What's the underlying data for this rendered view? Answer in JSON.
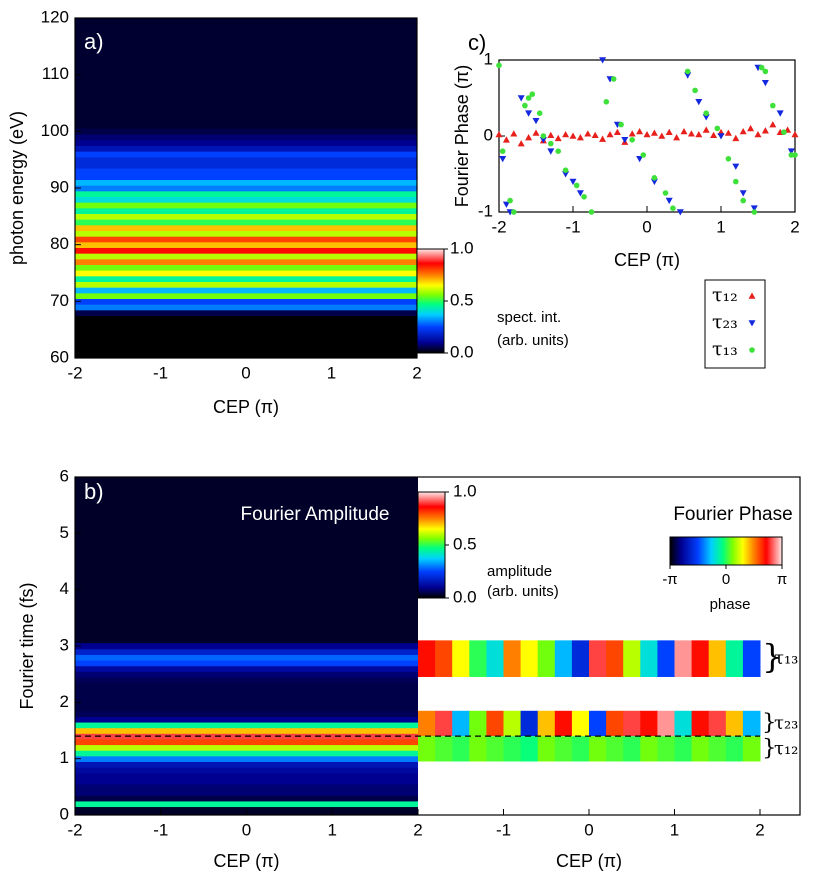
{
  "chart_data": [
    {
      "type": "heatmap",
      "label": "a)",
      "xlabel": "CEP (π)",
      "ylabel": "photon energy (eV)",
      "xlim": [
        -2,
        2
      ],
      "ylim": [
        60,
        120
      ],
      "xticks": [
        -2,
        -1,
        0,
        1,
        2
      ],
      "yticks": [
        60,
        70,
        80,
        90,
        100,
        110,
        120
      ],
      "y": [
        68,
        69,
        70,
        71,
        72,
        73,
        74,
        75,
        76,
        77,
        78,
        79,
        80,
        81,
        82,
        83,
        84,
        85,
        86,
        87,
        88,
        89,
        90,
        91,
        92,
        93,
        94,
        95,
        96,
        97,
        98,
        99,
        100
      ],
      "values": [
        0.05,
        0.3,
        0.25,
        0.55,
        0.35,
        0.6,
        0.45,
        0.65,
        0.55,
        0.75,
        0.6,
        0.85,
        0.7,
        0.8,
        0.6,
        0.7,
        0.5,
        0.6,
        0.45,
        0.55,
        0.4,
        0.45,
        0.3,
        0.35,
        0.25,
        0.25,
        0.2,
        0.2,
        0.25,
        0.15,
        0.1,
        0.08,
        0.05
      ],
      "colorbar": {
        "ticks": [
          {
            "value": 0,
            "label": "0.0"
          },
          {
            "value": 0.5,
            "label": "0.5"
          },
          {
            "value": 1,
            "label": "1.0"
          }
        ],
        "label": [
          "spect. int.",
          "(arb. units)"
        ]
      }
    },
    {
      "type": "scatter",
      "label": "c)",
      "xlabel": "CEP (π)",
      "ylabel": "Fourier Phase (π)",
      "xlim": [
        -2,
        2
      ],
      "ylim": [
        -1,
        1
      ],
      "xticks": [
        -2,
        -1,
        0,
        1,
        2
      ],
      "yticks": [
        -1,
        0,
        1
      ],
      "series": [
        {
          "name": "τ₁₂",
          "color": "#e8201c",
          "marker": "triangle-up",
          "x": [
            -2,
            -1.9,
            -1.8,
            -1.7,
            -1.6,
            -1.5,
            -1.4,
            -1.3,
            -1.2,
            -1.1,
            -1,
            -0.9,
            -0.8,
            -0.7,
            -0.6,
            -0.5,
            -0.4,
            -0.3,
            -0.2,
            -0.1,
            0,
            0.1,
            0.2,
            0.3,
            0.4,
            0.5,
            0.6,
            0.7,
            0.8,
            0.9,
            1,
            1.1,
            1.2,
            1.3,
            1.4,
            1.5,
            1.6,
            1.7,
            1.8,
            1.9,
            2
          ],
          "y": [
            0.02,
            -0.05,
            0.03,
            -0.1,
            -0.02,
            0.04,
            -0.06,
            0.01,
            -0.03,
            0.02,
            0,
            -0.02,
            0.03,
            0.01,
            -0.04,
            0.02,
            0.05,
            -0.08,
            0.03,
            0.06,
            0.02,
            0.04,
            0,
            0.05,
            -0.02,
            0.06,
            0.03,
            0.02,
            0.08,
            0.01,
            0.05,
            0.04,
            -0.03,
            0.06,
            0.1,
            0.02,
            0.07,
            0.15,
            0.05,
            0.08,
            0.02
          ]
        },
        {
          "name": "τ₂₃",
          "color": "#1428e0",
          "marker": "triangle-down",
          "x": [
            -1.95,
            -1.9,
            -1.85,
            -1.7,
            -1.6,
            -1.5,
            -1.4,
            -1.3,
            -1.1,
            -1,
            -0.9,
            -0.6,
            -0.5,
            -0.4,
            -0.3,
            -0.1,
            0.1,
            0.3,
            0.45,
            0.55,
            0.7,
            0.8,
            1,
            1.2,
            1.3,
            1.45,
            1.5,
            1.6,
            1.8,
            1.95
          ],
          "y": [
            -0.3,
            -0.9,
            -1,
            0.5,
            0.3,
            0.2,
            -0.05,
            -0.2,
            -0.5,
            -0.6,
            -0.75,
            1,
            0.75,
            0.15,
            -0.05,
            -0.3,
            -0.6,
            -0.85,
            -1,
            0.8,
            0.45,
            0.25,
            0,
            -0.4,
            -0.75,
            -0.95,
            0.9,
            0.7,
            0.3,
            -0.2
          ]
        },
        {
          "name": "τ₁₃",
          "color": "#3ee03a",
          "marker": "circle",
          "x": [
            -2,
            -1.95,
            -1.85,
            -1.8,
            -1.65,
            -1.6,
            -1.55,
            -1.45,
            -1.4,
            -1.3,
            -1.2,
            -1.1,
            -0.95,
            -0.85,
            -0.75,
            -0.55,
            -0.45,
            -0.35,
            -0.2,
            -0.05,
            0.1,
            0.25,
            0.35,
            0.55,
            0.65,
            0.8,
            0.95,
            1.1,
            1.2,
            1.3,
            1.45,
            1.55,
            1.6,
            1.7,
            1.85,
            1.95,
            2
          ],
          "y": [
            0.93,
            -0.2,
            -0.85,
            -1,
            0.4,
            0.5,
            0.55,
            0.3,
            0,
            -0.1,
            -0.2,
            -0.45,
            -0.65,
            -0.8,
            -1,
            0.45,
            0.75,
            0.15,
            -0.05,
            -0.25,
            -0.55,
            -0.75,
            -0.95,
            0.85,
            0.6,
            0.3,
            0.1,
            -0.3,
            -0.6,
            -0.85,
            -1,
            0.9,
            0.85,
            0.4,
            0.05,
            -0.25,
            -0.25
          ]
        }
      ]
    },
    {
      "type": "heatmap-phase",
      "label": "b)",
      "title": "Fourier Amplitude",
      "ylabel": "Fourier time (fs)",
      "xlabel": "CEP (π)",
      "xlim": [
        -2,
        2
      ],
      "ylim": [
        0,
        6
      ],
      "xticks": [
        -2,
        -1,
        0,
        1,
        2
      ],
      "yticks": [
        0,
        1,
        2,
        3,
        4,
        5,
        6
      ],
      "y": [
        0.2,
        0.3,
        0.4,
        0.5,
        0.6,
        0.7,
        0.8,
        0.9,
        1.0,
        1.1,
        1.2,
        1.3,
        1.4,
        1.5,
        1.6,
        1.7,
        1.8,
        1.9,
        2.0,
        2.1,
        2.2,
        2.3,
        2.4,
        2.5,
        2.6,
        2.7,
        2.8,
        2.9,
        3.0
      ],
      "values": [
        0.45,
        0.05,
        0.08,
        0.08,
        0.1,
        0.1,
        0.12,
        0.15,
        0.3,
        0.45,
        0.6,
        0.8,
        0.9,
        0.7,
        0.45,
        0.1,
        0.06,
        0.05,
        0.05,
        0.05,
        0.05,
        0.05,
        0.06,
        0.08,
        0.12,
        0.25,
        0.28,
        0.18,
        0.1
      ],
      "dashed_line": 1.4,
      "colorbar": {
        "ticks": [
          {
            "value": 0,
            "label": "0.0"
          },
          {
            "value": 0.5,
            "label": "0.5"
          },
          {
            "value": 1,
            "label": "1.0"
          }
        ],
        "label": [
          "amplitude",
          "(arb. units)"
        ]
      },
      "phase": {
        "title": "Fourier Phase",
        "xlabel": "CEP (π)",
        "xlim": [
          -2,
          2
        ],
        "xticks": [
          -1,
          0,
          1,
          2
        ],
        "colorbar": {
          "ticks": [
            {
              "value": -1,
              "label": "-π"
            },
            {
              "value": 0,
              "label": "0"
            },
            {
              "value": 1,
              "label": "π"
            }
          ],
          "label": "phase"
        },
        "strips": [
          {
            "name": "τ₁₃",
            "range": [
              2.45,
              3.1
            ],
            "values": [
              0.7,
              0.6,
              0.3,
              0,
              -0.2,
              0.5,
              0.3,
              0.1,
              -0.3,
              -0.6,
              0.8,
              0.6,
              0.2,
              -0.2,
              -0.5,
              0.9,
              0.7,
              0.4,
              -0.1,
              -0.5
            ]
          },
          {
            "name": "τ₂₃",
            "range": [
              1.4,
              1.85
            ],
            "values": [
              0.5,
              0.8,
              -0.3,
              0.1,
              0.6,
              0.2,
              -0.6,
              0.4,
              0.7,
              0.3,
              -0.5,
              0.6,
              0.8,
              0.7,
              0.9,
              -0.2,
              0.7,
              0.8,
              0.4,
              -0.3
            ]
          },
          {
            "name": "τ₁₂",
            "range": [
              0.95,
              1.4
            ],
            "values": [
              0.1,
              0.05,
              0,
              0.1,
              0.05,
              0,
              -0.05,
              0.1,
              0.05,
              0,
              0.1,
              0.05,
              0,
              0.1,
              0.05,
              0,
              0.1,
              0.05,
              0,
              0.1
            ]
          }
        ]
      }
    }
  ]
}
